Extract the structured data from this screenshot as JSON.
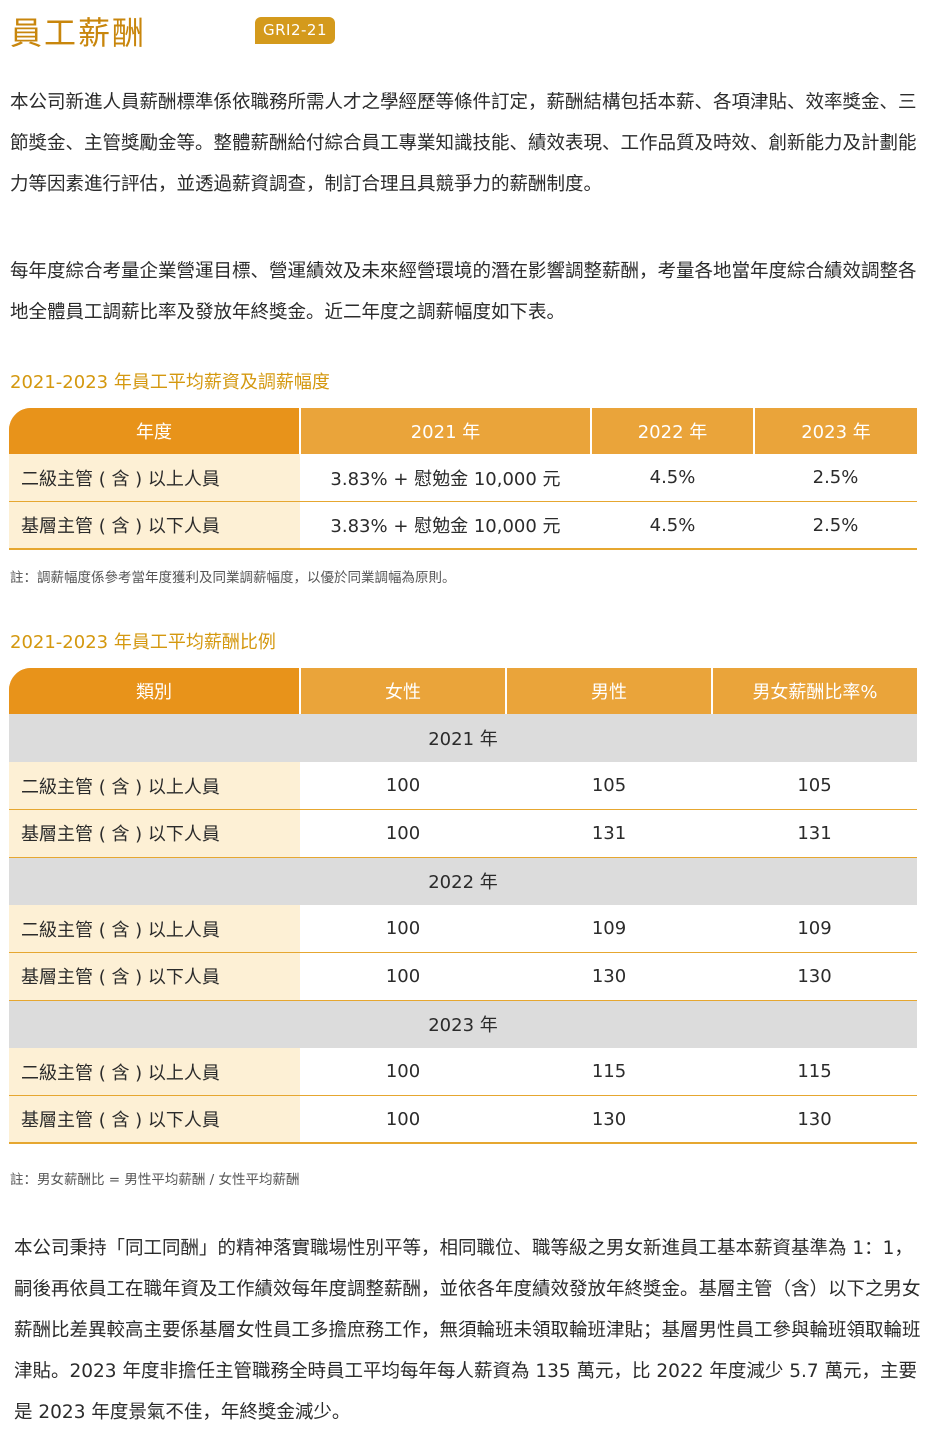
{
  "title": "員工薪酬",
  "badge": "GRI2-21",
  "para1": "本公司新進人員薪酬標準係依職務所需人才之學經歷等條件訂定，薪酬結構包括本薪、各項津貼、效率獎金、三節獎金、主管獎勵金等。整體薪酬給付綜合員工專業知識技能、績效表現、工作品質及時效、創新能力及計劃能力等因素進行評估，並透過薪資調查，制訂合理且具競爭力的薪酬制度。",
  "para2": "每年度綜合考量企業營運目標、營運績效及未來經營環境的潛在影響調整薪酬，考量各地當年度綜合績效調整各地全體員工調薪比率及發放年終獎金。近二年度之調薪幅度如下表。",
  "table1": {
    "title": "2021-2023 年員工平均薪資及調薪幅度",
    "headers": [
      "年度",
      "2021 年",
      "2022 年",
      "2023 年"
    ],
    "rows": [
      [
        "二級主管 ( 含 ) 以上人員",
        "3.83% + 慰勉金 10,000 元",
        "4.5%",
        "2.5%"
      ],
      [
        "基層主管 ( 含 ) 以下人員",
        "3.83% + 慰勉金 10,000 元",
        "4.5%",
        "2.5%"
      ]
    ],
    "note": "註：調薪幅度係參考當年度獲利及同業調薪幅度，以優於同業調幅為原則。"
  },
  "table2": {
    "title": "2021-2023 年員工平均薪酬比例",
    "headers": [
      "類別",
      "女性",
      "男性",
      "男女薪酬比率%"
    ],
    "groups": [
      {
        "year": "2021 年",
        "rows": [
          [
            "二級主管 ( 含 ) 以上人員",
            "100",
            "105",
            "105"
          ],
          [
            "基層主管 ( 含 ) 以下人員",
            "100",
            "131",
            "131"
          ]
        ]
      },
      {
        "year": "2022 年",
        "rows": [
          [
            "二級主管 ( 含 ) 以上人員",
            "100",
            "109",
            "109"
          ],
          [
            "基層主管 ( 含 ) 以下人員",
            "100",
            "130",
            "130"
          ]
        ]
      },
      {
        "year": "2023 年",
        "rows": [
          [
            "二級主管 ( 含 ) 以上人員",
            "100",
            "115",
            "115"
          ],
          [
            "基層主管 ( 含 ) 以下人員",
            "100",
            "130",
            "130"
          ]
        ]
      }
    ],
    "note": "註：男女薪酬比 = 男性平均薪酬 / 女性平均薪酬"
  },
  "para3": "本公司秉持「同工同酬」的精神落實職場性別平等，相同職位、職等級之男女新進員工基本薪資基準為 1：1，嗣後再依員工在職年資及工作績效每年度調整薪酬，並依各年度績效發放年終獎金。基層主管（含）以下之男女薪酬比差異較高主要係基層女性員工多擔庶務工作，無須輪班未領取輪班津貼；基層男性員工參與輪班領取輪班津貼。2023 年度非擔任主管職務全時員工平均每年每人薪資為 135 萬元，比 2022 年度減少 5.7 萬元，主要是 2023 年度景氣不佳，年終獎金減少。",
  "colors": {
    "accent": "#e8931a",
    "cat_bg": "#fdf0d5",
    "year_bg": "#dcdcdc"
  }
}
